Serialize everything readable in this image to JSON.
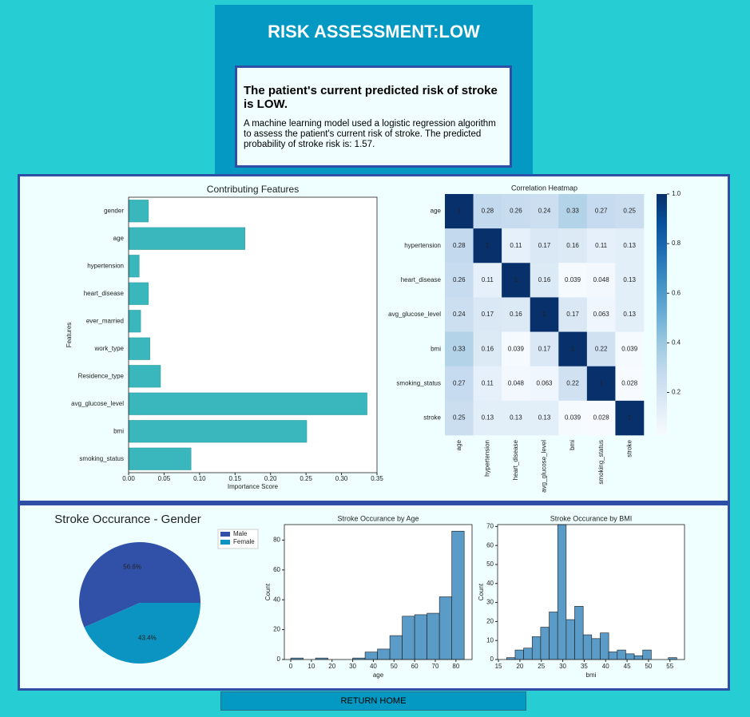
{
  "header": {
    "title": "RISK ASSESSMENT:LOW"
  },
  "card": {
    "heading": "The patient's current predicted risk of stroke is LOW.",
    "text": "A machine learning model used a logistic regression algorithm to assess the patient's current risk of stroke. The predicted probability of stroke risk is: 1.57."
  },
  "button": "RETURN HOME",
  "chart_data": [
    {
      "type": "barh",
      "title": "Contributing Features",
      "xlabel": "Importance Score",
      "ylabel": "Features",
      "categories": [
        "gender",
        "age",
        "hypertension",
        "heart_disease",
        "ever_married",
        "work_type",
        "Residence_type",
        "avg_glucose_level",
        "bmi",
        "smoking_status"
      ],
      "values": [
        0.028,
        0.164,
        0.015,
        0.028,
        0.017,
        0.03,
        0.045,
        0.336,
        0.251,
        0.088
      ],
      "color": "#3ab7bc",
      "xlim": [
        0,
        0.35
      ],
      "xticks": [
        {
          "value": 0,
          "label": "0.00"
        },
        0.05,
        {
          "value": 0.1,
          "label": "0.10"
        },
        0.15,
        {
          "value": 0.2,
          "label": "0.20"
        },
        0.25,
        {
          "value": 0.3,
          "label": "0.30"
        },
        0.35
      ]
    },
    {
      "type": "heatmap",
      "title": "Correlation Heatmap",
      "categories": [
        "age",
        "hypertension",
        "heart_disease",
        "avg_glucose_level",
        "bmi",
        "smoking_status",
        "stroke"
      ],
      "matrix": [
        [
          1,
          0.28,
          0.26,
          0.24,
          0.33,
          0.27,
          0.25
        ],
        [
          0.28,
          1,
          0.11,
          0.17,
          0.16,
          0.11,
          0.13
        ],
        [
          0.26,
          0.11,
          1,
          0.16,
          0.039,
          0.048,
          0.13
        ],
        [
          0.24,
          0.17,
          0.16,
          1,
          0.17,
          0.063,
          0.13
        ],
        [
          0.33,
          0.16,
          0.039,
          0.17,
          1,
          0.22,
          0.039
        ],
        [
          0.27,
          0.11,
          0.048,
          0.063,
          0.22,
          1,
          0.028
        ],
        [
          0.25,
          0.13,
          0.13,
          0.13,
          0.039,
          0.028,
          1
        ]
      ],
      "clim": [
        0.028,
        1
      ],
      "cticks": [
        0.2,
        0.4,
        0.6,
        0.8,
        {
          "value": 1,
          "label": "1.0"
        }
      ],
      "colormap": [
        "#f7fbff",
        "#deebf7",
        "#c6dbef",
        "#9ecae1",
        "#6baed6",
        "#4292c6",
        "#2171b5",
        "#08519c",
        "#08306b"
      ]
    },
    {
      "type": "pie",
      "title": "Stroke Occurance - Gender",
      "categories": [
        "Male",
        "Female"
      ],
      "values": [
        56.6,
        43.4
      ],
      "value_labels": [
        "56.6%",
        "43.4%"
      ],
      "colors": [
        "#3151a8",
        "#0b94c1"
      ],
      "legend": "upper right"
    },
    {
      "type": "hist",
      "title": "Stroke Occurance by Age",
      "xlabel": "age",
      "ylabel": "Count",
      "bins": [
        0,
        6,
        12,
        18,
        24,
        30,
        36,
        42,
        48,
        54,
        60,
        66,
        72,
        78,
        84
      ],
      "counts": [
        1,
        0,
        1,
        0,
        0,
        1,
        5,
        7,
        16,
        29,
        30,
        31,
        42,
        86
      ],
      "color": "#5a9bc8",
      "xlim": [
        -3.1,
        87.8
      ],
      "ylim": [
        0,
        90.4
      ],
      "xticks": [
        0,
        10,
        20,
        30,
        40,
        50,
        60,
        70,
        80
      ],
      "yticks": [
        0,
        20,
        40,
        60,
        80
      ]
    },
    {
      "type": "hist",
      "title": "Stroke Occurance by BMI",
      "xlabel": "bmi",
      "ylabel": "Count",
      "bins": [
        16.9,
        18.89,
        20.87,
        22.86,
        24.84,
        26.83,
        28.81,
        30.8,
        32.78,
        34.77,
        36.75,
        38.74,
        40.72,
        42.71,
        44.69,
        46.68,
        48.66,
        50.65,
        52.63,
        54.62,
        56.6
      ],
      "counts": [
        1,
        5,
        6,
        12,
        17,
        25,
        71,
        21,
        28,
        13,
        11,
        14,
        4,
        5,
        3,
        2,
        5,
        0,
        0,
        1
      ],
      "color": "#5a9bc8",
      "xlim": [
        14.8,
        58.4
      ],
      "ylim": [
        0,
        71
      ],
      "xticks": [
        15,
        20,
        25,
        30,
        35,
        40,
        45,
        50,
        55
      ],
      "yticks": [
        0,
        10,
        20,
        30,
        40,
        50,
        60,
        70
      ]
    }
  ]
}
